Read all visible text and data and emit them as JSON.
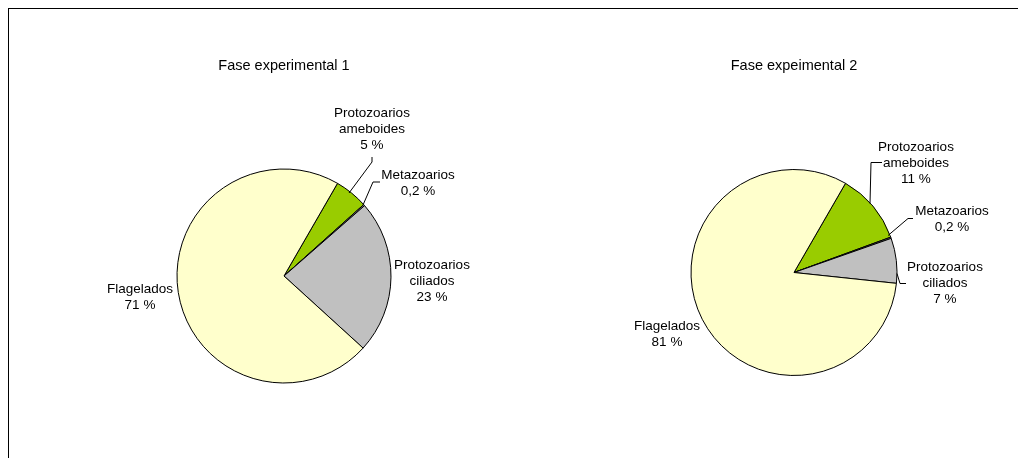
{
  "chart_data": [
    {
      "type": "pie",
      "title": "Fase experimental 1",
      "categories": [
        "Protozoarios ameboides",
        "Metazoarios",
        "Protozoarios ciliados",
        "Flagelados"
      ],
      "values": [
        5,
        0.2,
        23,
        71
      ],
      "value_labels": [
        "5 %",
        "0,2 %",
        "23 %",
        "71 %"
      ],
      "colors": [
        "#99cc00",
        "#808080",
        "#c0c0c0",
        "#ffffcc"
      ]
    },
    {
      "type": "pie",
      "title": "Fase expeimental 2",
      "categories": [
        "Protozoarios ameboides",
        "Metazoarios",
        "Protozoarios ciliados",
        "Flagelados"
      ],
      "values": [
        11,
        0.2,
        7,
        81
      ],
      "value_labels": [
        "11 %",
        "0,2 %",
        "7 %",
        "81 %"
      ],
      "colors": [
        "#99cc00",
        "#808080",
        "#c0c0c0",
        "#ffffcc"
      ]
    }
  ]
}
